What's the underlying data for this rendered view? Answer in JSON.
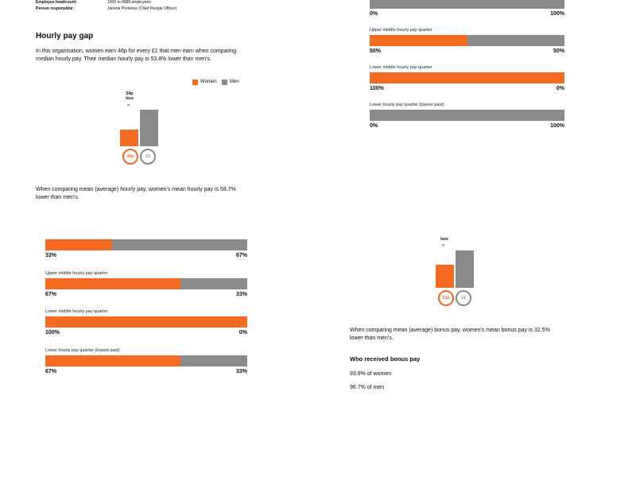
{
  "meta": {
    "headcount_label": "Employee headcount:",
    "headcount_value": "1000 to 4999 employees",
    "responsible_label": "Person responsible:",
    "responsible_value": "Janene Pretorius (Chief People Officer)"
  },
  "hourly": {
    "title": "Hourly pay gap",
    "median_text": "In this organisation, women earn 46p for every £1 that men earn when comparing median hourly pay. Their median hourly pay is 53.8% lower than men's.",
    "legend_women": "Women",
    "legend_men": "Men",
    "median_chart": {
      "diff_line1": "54p",
      "diff_line2": "less",
      "women_value": "46p",
      "men_value": "£1",
      "women_fraction": 0.46
    },
    "mean_text": "When comparing mean (average) hourly pay, women's mean hourly pay is 58.7% lower than men's."
  },
  "quarters_top_right": [
    {
      "label": "",
      "women": "0%",
      "men": "100%",
      "women_pct": 0
    },
    {
      "label": "Upper middle hourly pay quarter",
      "women": "50%",
      "men": "50%",
      "women_pct": 50
    },
    {
      "label": "Lower middle hourly pay quarter",
      "women": "100%",
      "men": "0%",
      "women_pct": 100
    },
    {
      "label": "Lower hourly pay quarter (lowest paid)",
      "women": "0%",
      "men": "100%",
      "women_pct": 0
    }
  ],
  "quarters_bottom_left": [
    {
      "label": "",
      "women": "33%",
      "men": "67%",
      "women_pct": 33
    },
    {
      "label": "Upper middle hourly pay quarter",
      "women": "67%",
      "men": "33%",
      "women_pct": 67
    },
    {
      "label": "Lower middle hourly pay quarter",
      "women": "100%",
      "men": "0%",
      "women_pct": 100
    },
    {
      "label": "Lower hourly pay quarter (lowest paid)",
      "women": "67%",
      "men": "33%",
      "women_pct": 67
    }
  ],
  "bonus": {
    "diff_text": "less",
    "women_value": "61p",
    "men_value": "£1",
    "women_fraction": 0.61,
    "mean_text": "When comparing mean (average) bonus pay, women's mean bonus pay is 32.5% lower than men's.",
    "who_title": "Who received bonus pay",
    "women_received": "93.9% of women",
    "men_received": "96.7% of men"
  },
  "colors": {
    "women": "#f26b21",
    "men": "#8a8a8a"
  }
}
